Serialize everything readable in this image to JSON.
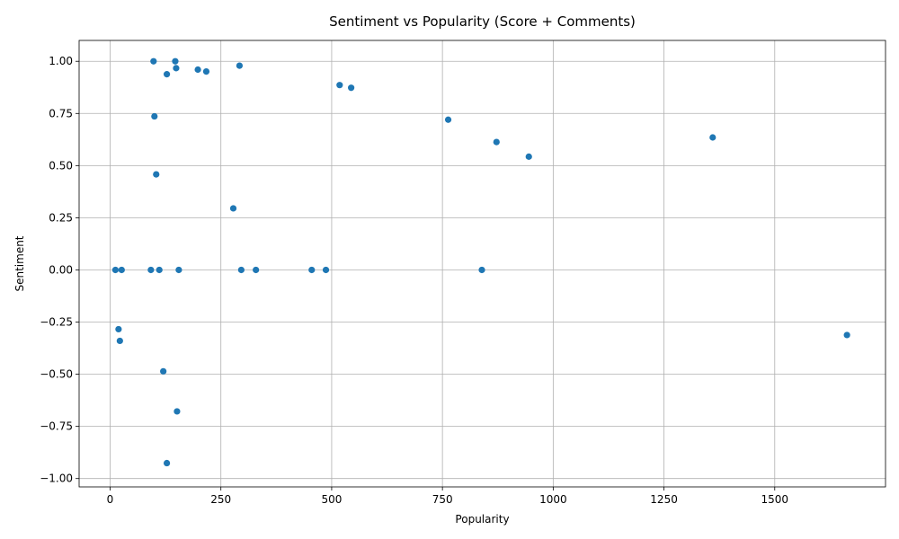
{
  "chart_data": {
    "type": "scatter",
    "title": "Sentiment vs Popularity (Score + Comments)",
    "xlabel": "Popularity",
    "ylabel": "Sentiment",
    "xlim": [
      -70,
      1750
    ],
    "ylim": [
      -1.04,
      1.1
    ],
    "xticks": [
      0,
      250,
      500,
      750,
      1000,
      1250,
      1500
    ],
    "xtick_labels": [
      "0",
      "250",
      "500",
      "750",
      "1000",
      "1250",
      "1500"
    ],
    "yticks": [
      -1.0,
      -0.75,
      -0.5,
      -0.25,
      0.0,
      0.25,
      0.5,
      0.75,
      1.0
    ],
    "ytick_labels": [
      "−1.00",
      "−0.75",
      "−0.50",
      "−0.25",
      "0.00",
      "0.25",
      "0.50",
      "0.75",
      "1.00"
    ],
    "grid": true,
    "marker_color": "#1f77b4",
    "points": [
      {
        "x": 98,
        "y": 1.0
      },
      {
        "x": 147,
        "y": 1.0
      },
      {
        "x": 149,
        "y": 0.967
      },
      {
        "x": 128,
        "y": 0.938
      },
      {
        "x": 198,
        "y": 0.96
      },
      {
        "x": 217,
        "y": 0.951
      },
      {
        "x": 292,
        "y": 0.979
      },
      {
        "x": 518,
        "y": 0.886
      },
      {
        "x": 544,
        "y": 0.873
      },
      {
        "x": 763,
        "y": 0.72
      },
      {
        "x": 872,
        "y": 0.613
      },
      {
        "x": 945,
        "y": 0.543
      },
      {
        "x": 1360,
        "y": 0.635
      },
      {
        "x": 100,
        "y": 0.736
      },
      {
        "x": 104,
        "y": 0.458
      },
      {
        "x": 278,
        "y": 0.295
      },
      {
        "x": 12,
        "y": 0.0
      },
      {
        "x": 26,
        "y": 0.0
      },
      {
        "x": 92,
        "y": 0.0
      },
      {
        "x": 111,
        "y": 0.0
      },
      {
        "x": 155,
        "y": 0.0
      },
      {
        "x": 296,
        "y": 0.0
      },
      {
        "x": 329,
        "y": 0.0
      },
      {
        "x": 455,
        "y": 0.0
      },
      {
        "x": 487,
        "y": 0.0
      },
      {
        "x": 839,
        "y": 0.0
      },
      {
        "x": 19,
        "y": -0.284
      },
      {
        "x": 22,
        "y": -0.34
      },
      {
        "x": 1663,
        "y": -0.312
      },
      {
        "x": 120,
        "y": -0.486
      },
      {
        "x": 151,
        "y": -0.678
      },
      {
        "x": 128,
        "y": -0.926
      }
    ]
  }
}
